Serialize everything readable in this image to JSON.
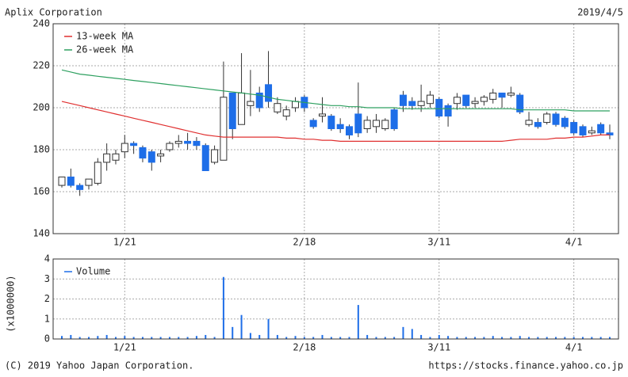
{
  "header": {
    "title": "Aplix Corporation",
    "date": "2019/4/5"
  },
  "footer": {
    "copyright": "(C) 2019 Yahoo Japan Corporation.",
    "url": "https://stocks.finance.yahoo.co.jp"
  },
  "chart_data": [
    {
      "type": "candlestick",
      "categories": [
        null,
        null,
        null,
        null,
        null,
        null,
        null,
        "1/21",
        null,
        null,
        null,
        null,
        null,
        null,
        null,
        null,
        null,
        null,
        null,
        null,
        null,
        null,
        null,
        null,
        null,
        null,
        null,
        "2/18",
        null,
        null,
        null,
        null,
        null,
        null,
        null,
        null,
        null,
        null,
        null,
        null,
        null,
        null,
        "3/11",
        null,
        null,
        null,
        null,
        null,
        null,
        null,
        null,
        null,
        null,
        null,
        null,
        null,
        null,
        "4/1",
        null,
        null,
        null,
        null
      ],
      "open": [
        163,
        167,
        163,
        163,
        164,
        174,
        175,
        179,
        183,
        181,
        179,
        177,
        180,
        183,
        184,
        184,
        182,
        174,
        175,
        207,
        192,
        201,
        207,
        211,
        198,
        196,
        200,
        205,
        194,
        196,
        196,
        192,
        191,
        197,
        190,
        191,
        190,
        199,
        206,
        203,
        201,
        202,
        204,
        201,
        202,
        206,
        202,
        203,
        204,
        207,
        206,
        206,
        192,
        193,
        193,
        197,
        195,
        193,
        191,
        188,
        192,
        188
      ],
      "high": [
        167,
        171,
        164,
        166,
        176,
        183,
        180,
        187,
        184,
        182,
        180,
        180,
        184,
        187,
        188,
        186,
        183,
        182,
        222,
        207,
        226,
        218,
        210,
        227,
        205,
        201,
        205,
        206,
        195,
        205,
        197,
        195,
        192,
        212,
        196,
        197,
        195,
        200,
        208,
        205,
        211,
        208,
        205,
        202,
        207,
        206,
        205,
        206,
        209,
        207,
        210,
        207,
        198,
        195,
        198,
        198,
        196,
        194,
        192,
        191,
        193,
        192
      ],
      "low": [
        162,
        162,
        158,
        161,
        163,
        170,
        173,
        176,
        178,
        174,
        170,
        174,
        179,
        181,
        180,
        180,
        170,
        173,
        175,
        185,
        192,
        196,
        198,
        200,
        197,
        194,
        198,
        198,
        190,
        193,
        189,
        188,
        185,
        186,
        188,
        188,
        189,
        189,
        198,
        199,
        198,
        200,
        195,
        191,
        199,
        200,
        200,
        201,
        202,
        200,
        205,
        197,
        191,
        190,
        192,
        191,
        190,
        187,
        186,
        187,
        187,
        185
      ],
      "close": [
        167,
        163,
        161,
        166,
        174,
        178,
        178,
        183,
        182,
        176,
        174,
        178,
        183,
        184,
        183,
        182,
        170,
        180,
        205,
        190,
        207,
        203,
        200,
        203,
        202,
        199,
        203,
        200,
        191,
        197,
        190,
        190,
        187,
        188,
        194,
        194,
        194,
        190,
        201,
        201,
        203,
        206,
        196,
        196,
        205,
        201,
        203,
        205,
        207,
        205,
        207,
        198,
        194,
        191,
        197,
        192,
        191,
        188,
        187,
        189,
        188,
        187
      ],
      "up_color": "#ffffff",
      "down_color": "#1e6ee8",
      "series": [
        {
          "name": "13-week MA",
          "color": "#e03030",
          "values": [
            203,
            202,
            201,
            200,
            199,
            198,
            197,
            196,
            195,
            194,
            193,
            192,
            191,
            190,
            189,
            188,
            187,
            186.5,
            186,
            186,
            186,
            186,
            186,
            186,
            186,
            185.5,
            185.5,
            185,
            185,
            184.5,
            184.5,
            184,
            184,
            184,
            184,
            184,
            184,
            184,
            184,
            184,
            184,
            184,
            184,
            184,
            184,
            184,
            184,
            184,
            184,
            184,
            184.5,
            185,
            185,
            185,
            185,
            185.5,
            185.5,
            186,
            186,
            186.5,
            187,
            187
          ]
        },
        {
          "name": "26-week MA",
          "color": "#2ea060",
          "values": [
            218,
            217,
            216,
            215.5,
            215,
            214.5,
            214,
            213.5,
            213,
            212.5,
            212,
            211.5,
            211,
            210.5,
            210,
            209.5,
            209,
            208.5,
            208,
            207.5,
            207,
            206.5,
            206,
            205,
            204,
            203.5,
            203,
            202.5,
            202,
            201.5,
            201,
            201,
            200.5,
            200.5,
            200,
            200,
            200,
            200,
            199.5,
            199.5,
            199.5,
            199.5,
            199.5,
            199.5,
            199.5,
            199.5,
            199.5,
            199.5,
            199.5,
            199.5,
            199.5,
            199,
            199,
            199,
            199,
            199,
            199,
            198.5,
            198.5,
            198.5,
            198.5,
            198.5
          ]
        }
      ],
      "ylim": [
        140,
        240
      ],
      "yticks": [
        140,
        160,
        180,
        200,
        220,
        240
      ],
      "grid": true
    },
    {
      "type": "bar",
      "categories": [
        null,
        null,
        null,
        null,
        null,
        null,
        null,
        "1/21",
        null,
        null,
        null,
        null,
        null,
        null,
        null,
        null,
        null,
        null,
        null,
        null,
        null,
        null,
        null,
        null,
        null,
        null,
        null,
        "2/18",
        null,
        null,
        null,
        null,
        null,
        null,
        null,
        null,
        null,
        null,
        null,
        null,
        null,
        null,
        "3/11",
        null,
        null,
        null,
        null,
        null,
        null,
        null,
        null,
        null,
        null,
        null,
        null,
        null,
        null,
        "4/1",
        null,
        null,
        null,
        null
      ],
      "ylabel": "(x1000000)",
      "series": [
        {
          "name": "Volume",
          "color": "#1e6ee8",
          "values": [
            0.15,
            0.2,
            0.1,
            0.1,
            0.15,
            0.2,
            0.1,
            0.15,
            0.1,
            0.1,
            0.1,
            0.1,
            0.1,
            0.1,
            0.1,
            0.15,
            0.2,
            0.1,
            3.1,
            0.6,
            1.2,
            0.3,
            0.2,
            1.0,
            0.2,
            0.1,
            0.15,
            0.1,
            0.1,
            0.2,
            0.1,
            0.1,
            0.1,
            1.7,
            0.2,
            0.1,
            0.1,
            0.1,
            0.6,
            0.5,
            0.2,
            0.1,
            0.2,
            0.15,
            0.1,
            0.1,
            0.1,
            0.1,
            0.15,
            0.1,
            0.1,
            0.15,
            0.1,
            0.1,
            0.1,
            0.1,
            0.1,
            0.1,
            0.1,
            0.1,
            0.1,
            0.1
          ]
        }
      ],
      "ylim": [
        0,
        4
      ],
      "yticks": [
        0,
        1,
        2,
        3,
        4
      ],
      "grid": true
    }
  ]
}
